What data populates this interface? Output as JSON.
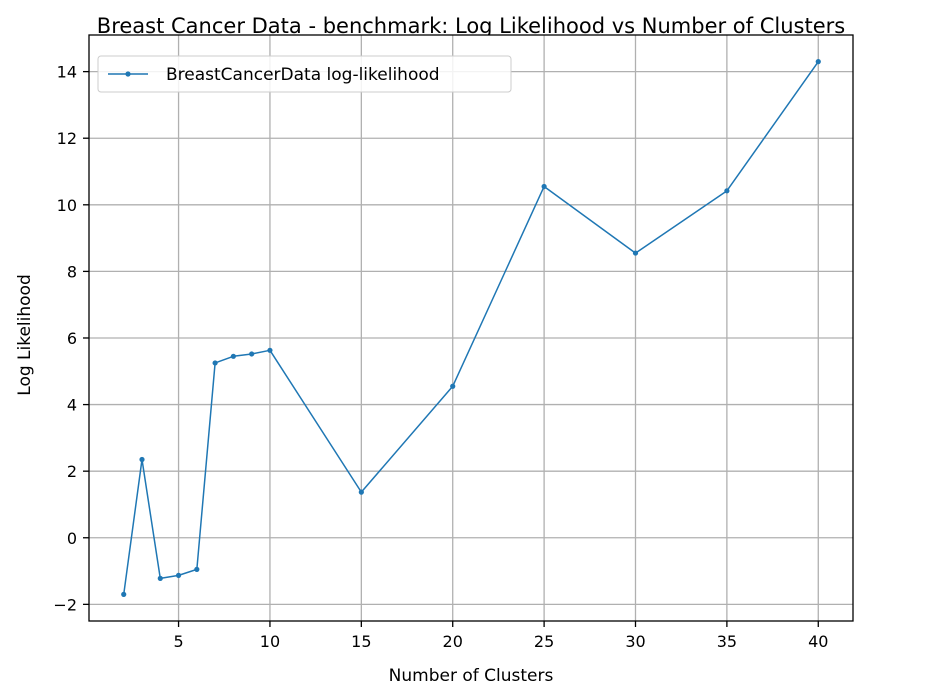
{
  "chart_data": {
    "type": "line",
    "title": "Breast Cancer Data - benchmark: Log Likelihood vs Number of Clusters",
    "xlabel": "Number of Clusters",
    "ylabel": "Log Likelihood",
    "xlim": [
      0.1,
      41.9
    ],
    "ylim": [
      -2.5,
      15.1
    ],
    "xticks": [
      5,
      10,
      15,
      20,
      25,
      30,
      35,
      40
    ],
    "yticks": [
      -2,
      0,
      2,
      4,
      6,
      8,
      10,
      12,
      14
    ],
    "xtick_labels": [
      "5",
      "10",
      "15",
      "20",
      "25",
      "30",
      "35",
      "40"
    ],
    "ytick_labels": [
      "−2",
      "0",
      "2",
      "4",
      "6",
      "8",
      "10",
      "12",
      "14"
    ],
    "grid": true,
    "legend_position": "top-left",
    "series": [
      {
        "name": "BreastCancerData log-likelihood",
        "color": "#1f77b4",
        "marker": "point",
        "x": [
          2,
          3,
          4,
          5,
          6,
          7,
          8,
          9,
          10,
          15,
          20,
          25,
          30,
          35,
          40
        ],
        "y": [
          -1.7,
          2.35,
          -1.22,
          -1.13,
          -0.95,
          5.25,
          5.45,
          5.52,
          5.63,
          1.37,
          4.55,
          10.55,
          8.55,
          10.42,
          14.3
        ]
      }
    ]
  }
}
